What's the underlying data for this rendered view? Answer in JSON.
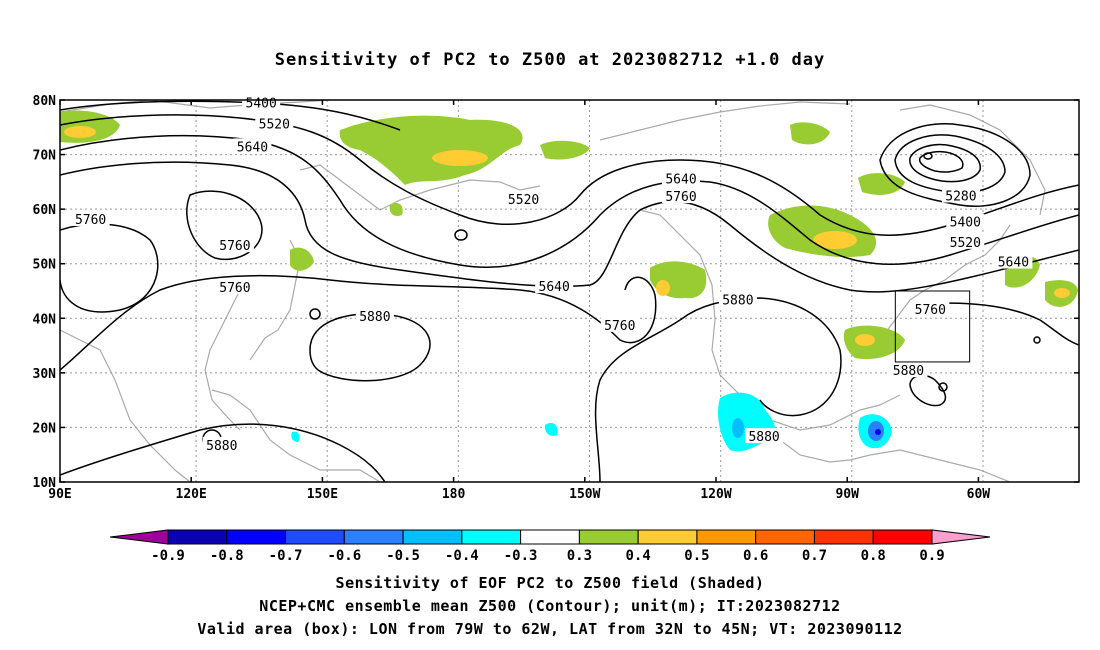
{
  "title": "Sensitivity of PC2 to Z500 at 2023082712 +1.0 day",
  "lat_labels": [
    "80N",
    "70N",
    "60N",
    "50N",
    "40N",
    "30N",
    "20N",
    "10N"
  ],
  "lon_labels": [
    "90E",
    "120E",
    "150E",
    "180",
    "150W",
    "120W",
    "90W",
    "60W"
  ],
  "contour_labels": [
    {
      "text": "5400",
      "lon": 136,
      "lat": 79.5
    },
    {
      "text": "5520",
      "lon": 139,
      "lat": 75.7
    },
    {
      "text": "5640",
      "lon": 134,
      "lat": 71.5
    },
    {
      "text": "5760",
      "lon": 97,
      "lat": 58.2
    },
    {
      "text": "5760",
      "lon": 130,
      "lat": 53.4
    },
    {
      "text": "5760",
      "lon": 130,
      "lat": 45.7
    },
    {
      "text": "5880",
      "lon": 162,
      "lat": 40.4
    },
    {
      "text": "5880",
      "lon": 127,
      "lat": 16.8
    },
    {
      "text": "5520",
      "lon": 196,
      "lat": 61.9
    },
    {
      "text": "5640",
      "lon": 203,
      "lat": 45.9
    },
    {
      "text": "5640",
      "lon": 232,
      "lat": 65.6
    },
    {
      "text": "5760",
      "lon": 232,
      "lat": 62.4
    },
    {
      "text": "5760",
      "lon": 218,
      "lat": 38.8
    },
    {
      "text": "5880",
      "lon": 245,
      "lat": 43.4
    },
    {
      "text": "5880",
      "lon": 251,
      "lat": 18.4
    },
    {
      "text": "5280",
      "lon": 296,
      "lat": 62.5
    },
    {
      "text": "5400",
      "lon": 297,
      "lat": 57.7
    },
    {
      "text": "5520",
      "lon": 297,
      "lat": 54.0
    },
    {
      "text": "5640",
      "lon": 308,
      "lat": 50.4
    },
    {
      "text": "5760",
      "lon": 289,
      "lat": 41.7
    },
    {
      "text": "5880",
      "lon": 284,
      "lat": 30.5
    }
  ],
  "valid_box": {
    "lon_min": 281,
    "lon_max": 298,
    "lat_min": 32,
    "lat_max": 45
  },
  "colorbar": {
    "colors": [
      "#a0009a",
      "#0a00b4",
      "#0000ff",
      "#1f4cff",
      "#2c80ff",
      "#00bfff",
      "#00fdfd",
      "#ffffff",
      "#99cc33",
      "#ffcc33",
      "#ff9900",
      "#ff6600",
      "#ff3300",
      "#ff0000",
      "#ff9fcf"
    ],
    "labels": [
      "-0.9",
      "-0.8",
      "-0.7",
      "-0.6",
      "-0.5",
      "-0.4",
      "-0.3",
      "0.3",
      "0.4",
      "0.5",
      "0.6",
      "0.7",
      "0.8",
      "0.9"
    ]
  },
  "footer": {
    "line1": "Sensitivity of EOF PC2 to Z500 field (Shaded)",
    "line2": "NCEP+CMC ensemble mean Z500 (Contour); unit(m); IT:2023082712",
    "line3": "Valid area (box): LON from 79W to 62W, LAT from 32N to 45N; VT: 2023090112"
  }
}
